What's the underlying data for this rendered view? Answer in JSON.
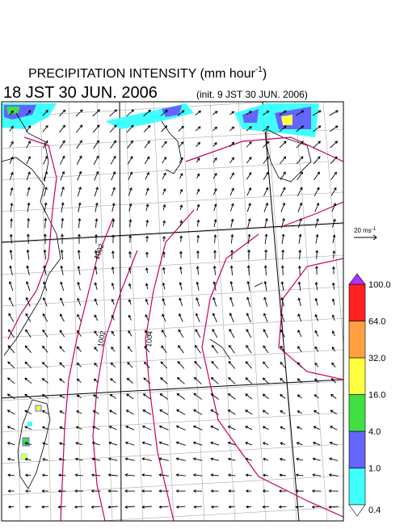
{
  "title": {
    "text": "PRECIPITATION INTENSITY (mm hour",
    "superscript": "-1",
    "close": ")"
  },
  "valid_time": "18 JST 30 JUN. 2006",
  "init_time": "(init. 9 JST 30 JUN. 2006)",
  "wind_scale": {
    "text": "20 ms",
    "superscript": "-1"
  },
  "contour_labels": [
    "1002",
    "1002",
    "1004"
  ],
  "colorbar": {
    "levels": [
      {
        "value": 0.4,
        "label": "0.4"
      },
      {
        "value": 1,
        "label": "1.0"
      },
      {
        "value": 4,
        "label": "4.0"
      },
      {
        "value": 16,
        "label": "16.0"
      },
      {
        "value": 32,
        "label": "32.0"
      },
      {
        "value": 64,
        "label": "64.0"
      },
      {
        "value": 100,
        "label": "100.0"
      }
    ],
    "colors": [
      "#40ffff",
      "#6464ff",
      "#40e040",
      "#ffff40",
      "#ffa040",
      "#ff2020"
    ],
    "over_color": "#b030ff",
    "under_color": "#ffffff"
  }
}
